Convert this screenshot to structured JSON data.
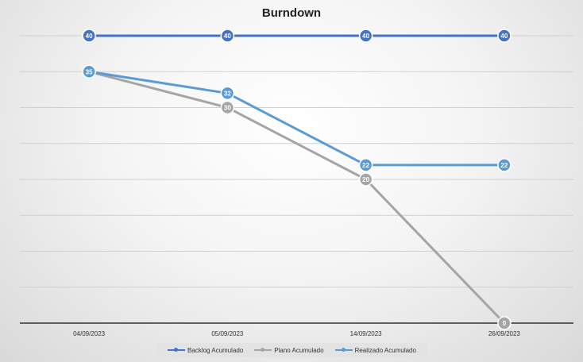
{
  "chart_data": {
    "type": "line",
    "title": "Burndown",
    "categories": [
      "04/09/2023",
      "05/09/2023",
      "14/09/2023",
      "26/09/2023"
    ],
    "ylim": [
      0,
      40
    ],
    "grid": true,
    "legend_position": "bottom",
    "series": [
      {
        "name": "Backlog Acumulado",
        "values": [
          40,
          40,
          40,
          40
        ],
        "color": "#4472C4",
        "labels": [
          "40",
          "40",
          "40",
          "40"
        ]
      },
      {
        "name": "Plano Acumulado",
        "values": [
          35,
          30,
          20,
          0
        ],
        "color": "#A5A5A5",
        "labels": [
          "",
          "30",
          "20",
          "0"
        ]
      },
      {
        "name": "Realizado Acumulado",
        "values": [
          35,
          32,
          22,
          22
        ],
        "color": "#5B9BD5",
        "labels": [
          "35",
          "32",
          "22",
          "22"
        ]
      }
    ]
  }
}
